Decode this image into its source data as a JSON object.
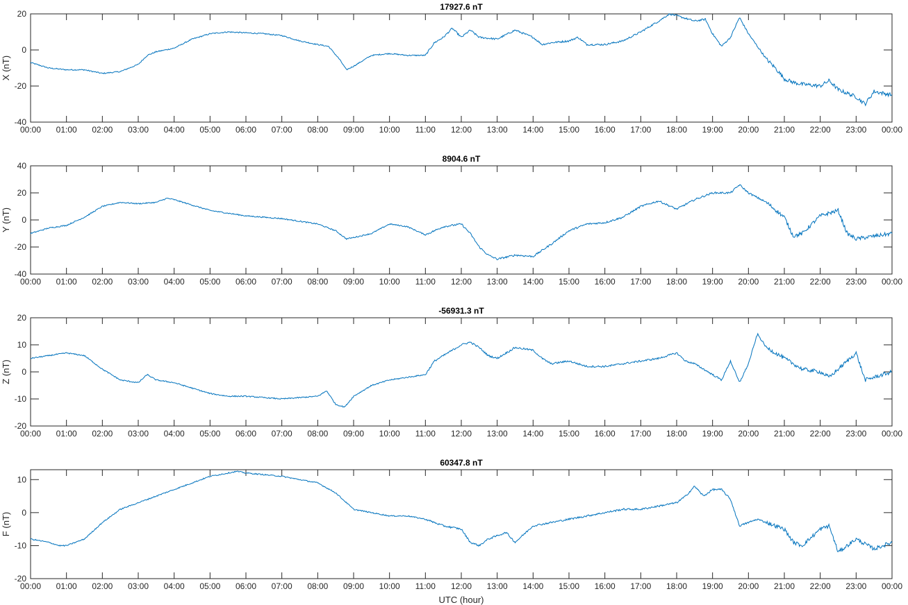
{
  "figure": {
    "xlabel": "UTC (hour)",
    "line_color": "#0072BD",
    "background": "#ffffff"
  },
  "chart_data": [
    {
      "type": "line",
      "title": "17927.6 nT",
      "xlabel": "",
      "ylabel": "X (nT)",
      "xlim": [
        0,
        24
      ],
      "ylim": [
        -40,
        20
      ],
      "yticks": [
        20,
        0,
        -20,
        -40
      ],
      "xtick_labels": [
        "00:00",
        "01:00",
        "02:00",
        "03:00",
        "04:00",
        "05:00",
        "06:00",
        "07:00",
        "08:00",
        "09:00",
        "10:00",
        "11:00",
        "12:00",
        "13:00",
        "14:00",
        "15:00",
        "16:00",
        "17:00",
        "18:00",
        "19:00",
        "20:00",
        "21:00",
        "22:00",
        "23:00",
        "00:00"
      ],
      "series": [
        {
          "x": [
            0,
            0.5,
            1,
            1.5,
            2,
            2.5,
            3,
            3.25,
            3.5,
            4,
            4.5,
            5,
            5.5,
            6,
            6.5,
            7,
            7.5,
            8,
            8.3,
            8.6,
            8.8,
            9,
            9.5,
            10,
            10.5,
            11,
            11.25,
            11.5,
            11.75,
            12,
            12.25,
            12.5,
            13,
            13.5,
            14,
            14.25,
            14.5,
            15,
            15.25,
            15.5,
            16,
            16.5,
            17,
            17.5,
            17.8,
            18,
            18.5,
            18.8,
            19,
            19.25,
            19.5,
            19.75,
            20,
            20.25,
            20.5,
            20.75,
            21,
            21.25,
            21.5,
            22,
            22.25,
            22.5,
            23,
            23.25,
            23.5,
            24
          ],
          "y": [
            -7,
            -10,
            -11,
            -11,
            -13,
            -12,
            -8,
            -3,
            -1,
            1,
            6,
            9,
            10,
            9.5,
            9,
            8,
            5,
            3,
            2,
            -5,
            -11,
            -9,
            -3,
            -2,
            -3,
            -3,
            4,
            7,
            12,
            7,
            11,
            7,
            6,
            11,
            7,
            3,
            4,
            5,
            7,
            3,
            3,
            5,
            10,
            16,
            20,
            19,
            16,
            17,
            9,
            2,
            7,
            18,
            9,
            2,
            -5,
            -10,
            -16,
            -18,
            -19,
            -20,
            -17,
            -22,
            -26,
            -30,
            -23,
            -25
          ]
        }
      ]
    },
    {
      "type": "line",
      "title": "8904.6 nT",
      "xlabel": "",
      "ylabel": "Y (nT)",
      "xlim": [
        0,
        24
      ],
      "ylim": [
        -40,
        40
      ],
      "yticks": [
        40,
        20,
        0,
        -20,
        -40
      ],
      "xtick_labels": [
        "00:00",
        "01:00",
        "02:00",
        "03:00",
        "04:00",
        "05:00",
        "06:00",
        "07:00",
        "08:00",
        "09:00",
        "10:00",
        "11:00",
        "12:00",
        "13:00",
        "14:00",
        "15:00",
        "16:00",
        "17:00",
        "18:00",
        "19:00",
        "20:00",
        "21:00",
        "22:00",
        "23:00",
        "00:00"
      ],
      "series": [
        {
          "x": [
            0,
            0.5,
            1,
            1.5,
            2,
            2.5,
            3,
            3.5,
            3.8,
            4,
            4.5,
            5,
            5.5,
            6,
            6.5,
            7,
            7.5,
            8,
            8.5,
            8.8,
            9,
            9.5,
            10,
            10.5,
            11,
            11.5,
            12,
            12.25,
            12.5,
            12.75,
            13,
            13.5,
            14,
            14.5,
            15,
            15.5,
            16,
            16.5,
            17,
            17.5,
            18,
            18.5,
            19,
            19.5,
            19.75,
            20,
            20.5,
            21,
            21.25,
            21.5,
            22,
            22.5,
            22.75,
            23,
            23.5,
            24
          ],
          "y": [
            -10,
            -6,
            -4,
            2,
            10,
            13,
            12,
            13,
            16,
            15,
            11,
            7,
            5,
            3,
            2,
            1,
            -1,
            -3,
            -8,
            -14,
            -13,
            -10,
            -3,
            -5,
            -11,
            -5,
            -3,
            -10,
            -20,
            -26,
            -29,
            -26,
            -27,
            -18,
            -8,
            -3,
            -2,
            2,
            10,
            14,
            8,
            15,
            20,
            20,
            26,
            20,
            13,
            2,
            -12,
            -10,
            3,
            7,
            -10,
            -14,
            -12,
            -10
          ]
        }
      ]
    },
    {
      "type": "line",
      "title": "-56931.3 nT",
      "xlabel": "",
      "ylabel": "Z (nT)",
      "xlim": [
        0,
        24
      ],
      "ylim": [
        -20,
        20
      ],
      "yticks": [
        20,
        10,
        0,
        -10,
        -20
      ],
      "xtick_labels": [
        "00:00",
        "01:00",
        "02:00",
        "03:00",
        "04:00",
        "05:00",
        "06:00",
        "07:00",
        "08:00",
        "09:00",
        "10:00",
        "11:00",
        "12:00",
        "13:00",
        "14:00",
        "15:00",
        "16:00",
        "17:00",
        "18:00",
        "19:00",
        "20:00",
        "21:00",
        "22:00",
        "23:00",
        "00:00"
      ],
      "series": [
        {
          "x": [
            0,
            0.5,
            1,
            1.5,
            2,
            2.5,
            3,
            3.25,
            3.5,
            4,
            4.5,
            5,
            5.5,
            6,
            6.5,
            7,
            7.5,
            8,
            8.25,
            8.5,
            8.75,
            9,
            9.5,
            10,
            10.5,
            11,
            11.25,
            11.5,
            11.75,
            12,
            12.25,
            12.5,
            12.75,
            13,
            13.5,
            14,
            14.25,
            14.5,
            15,
            15.25,
            15.5,
            16,
            16.5,
            17,
            17.5,
            18,
            18.25,
            18.5,
            18.75,
            19,
            19.25,
            19.5,
            19.75,
            20,
            20.25,
            20.5,
            20.75,
            21,
            21.25,
            21.5,
            22,
            22.25,
            22.5,
            23,
            23.25,
            23.5,
            24
          ],
          "y": [
            5,
            6,
            7,
            6,
            1,
            -3,
            -4,
            -1,
            -3,
            -4,
            -6,
            -8,
            -9,
            -9,
            -9.5,
            -10,
            -9.5,
            -9,
            -7,
            -12,
            -13,
            -9,
            -5,
            -3,
            -2,
            -1,
            4,
            6,
            8,
            10,
            11,
            9,
            6,
            5,
            9,
            8,
            5,
            3,
            4,
            3,
            2,
            2,
            3,
            4,
            5,
            7,
            4,
            3,
            1,
            -1,
            -3,
            4,
            -4,
            3,
            14,
            9,
            7,
            5,
            3,
            1,
            0,
            -2,
            1,
            7,
            -3,
            -2,
            0
          ]
        }
      ]
    },
    {
      "type": "line",
      "title": "60347.8 nT",
      "xlabel": "UTC (hour)",
      "ylabel": "F (nT)",
      "xlim": [
        0,
        24
      ],
      "ylim": [
        -20,
        13
      ],
      "yticks": [
        10,
        0,
        -10,
        -20
      ],
      "xtick_labels": [
        "00:00",
        "01:00",
        "02:00",
        "03:00",
        "04:00",
        "05:00",
        "06:00",
        "07:00",
        "08:00",
        "09:00",
        "10:00",
        "11:00",
        "12:00",
        "13:00",
        "14:00",
        "15:00",
        "16:00",
        "17:00",
        "18:00",
        "19:00",
        "20:00",
        "21:00",
        "22:00",
        "23:00",
        "00:00"
      ],
      "series": [
        {
          "x": [
            0,
            0.5,
            0.8,
            1,
            1.5,
            2,
            2.5,
            3,
            3.5,
            4,
            4.5,
            5,
            5.5,
            5.75,
            6,
            6.5,
            7,
            7.5,
            8,
            8.5,
            9,
            9.5,
            10,
            10.5,
            11,
            11.5,
            12,
            12.25,
            12.5,
            12.75,
            13,
            13.25,
            13.5,
            14,
            14.5,
            15,
            15.5,
            16,
            16.5,
            17,
            17.5,
            18,
            18.25,
            18.5,
            18.75,
            19,
            19.25,
            19.5,
            19.75,
            20,
            20.25,
            20.5,
            20.75,
            21,
            21.25,
            21.5,
            22,
            22.25,
            22.5,
            23,
            23.5,
            24
          ],
          "y": [
            -8,
            -9,
            -10,
            -10,
            -8,
            -3,
            1,
            3,
            5,
            7,
            9,
            11,
            12,
            12.5,
            12,
            11.5,
            11,
            10,
            9,
            6,
            1,
            0,
            -1,
            -1,
            -2,
            -4,
            -5,
            -9,
            -10,
            -8,
            -7,
            -6,
            -9,
            -4,
            -3,
            -2,
            -1,
            0,
            1,
            1,
            2,
            3,
            5,
            8,
            5,
            7,
            7,
            4,
            -4,
            -3,
            -2,
            -3,
            -4,
            -5,
            -9,
            -10,
            -5,
            -4,
            -12,
            -8,
            -11,
            -9
          ]
        }
      ]
    }
  ]
}
